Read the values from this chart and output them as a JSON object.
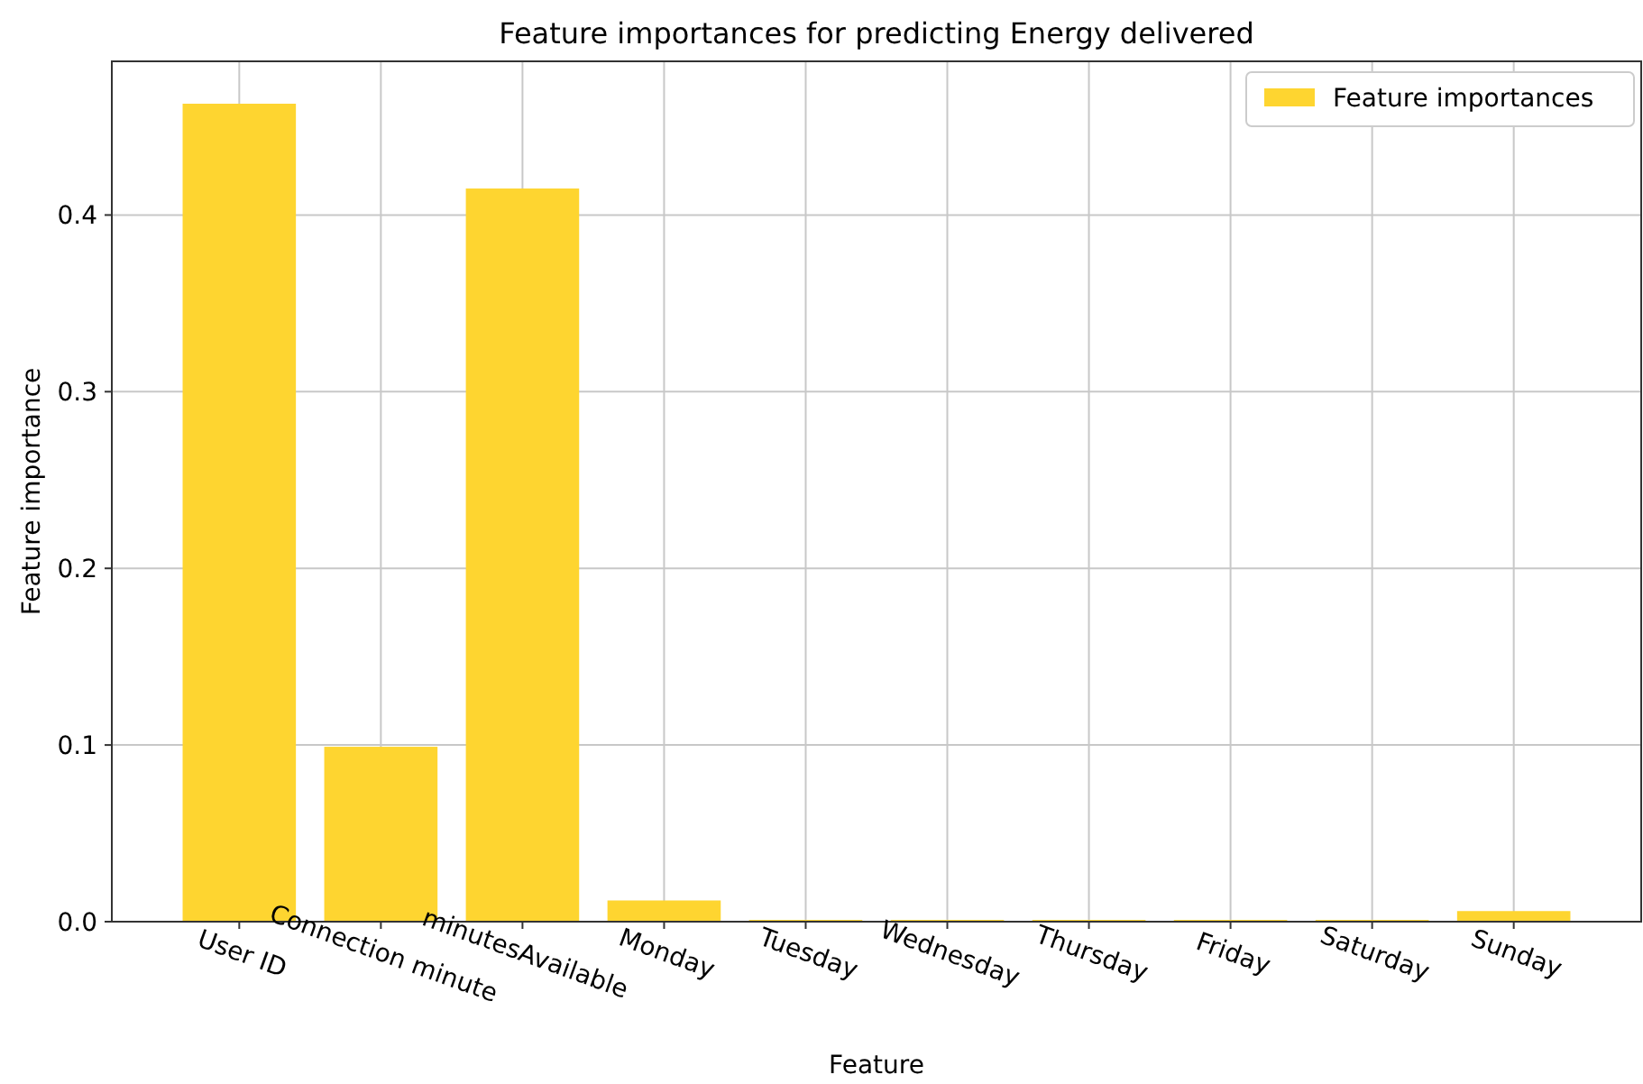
{
  "chart_data": {
    "type": "bar",
    "title": "Feature importances for predicting Energy delivered",
    "xlabel": "Feature",
    "ylabel": "Feature importance",
    "categories": [
      "User ID",
      "Connection minute",
      "minutesAvailable",
      "Monday",
      "Tuesday",
      "Wednesday",
      "Thursday",
      "Friday",
      "Saturday",
      "Sunday"
    ],
    "series": [
      {
        "name": "Feature importances",
        "color": "#fed530",
        "values": [
          0.463,
          0.099,
          0.415,
          0.012,
          0.001,
          0.001,
          0.001,
          0.001,
          0.001,
          0.006
        ]
      }
    ],
    "ylim": [
      0,
      0.487
    ],
    "yticks": [
      {
        "value": 0,
        "label": "0.0"
      },
      {
        "value": 0.1,
        "label": "0.1"
      },
      {
        "value": 0.2,
        "label": "0.2"
      },
      {
        "value": 0.3,
        "label": "0.3"
      },
      {
        "value": 0.4,
        "label": "0.4"
      }
    ],
    "grid": true,
    "legend": "top right"
  }
}
